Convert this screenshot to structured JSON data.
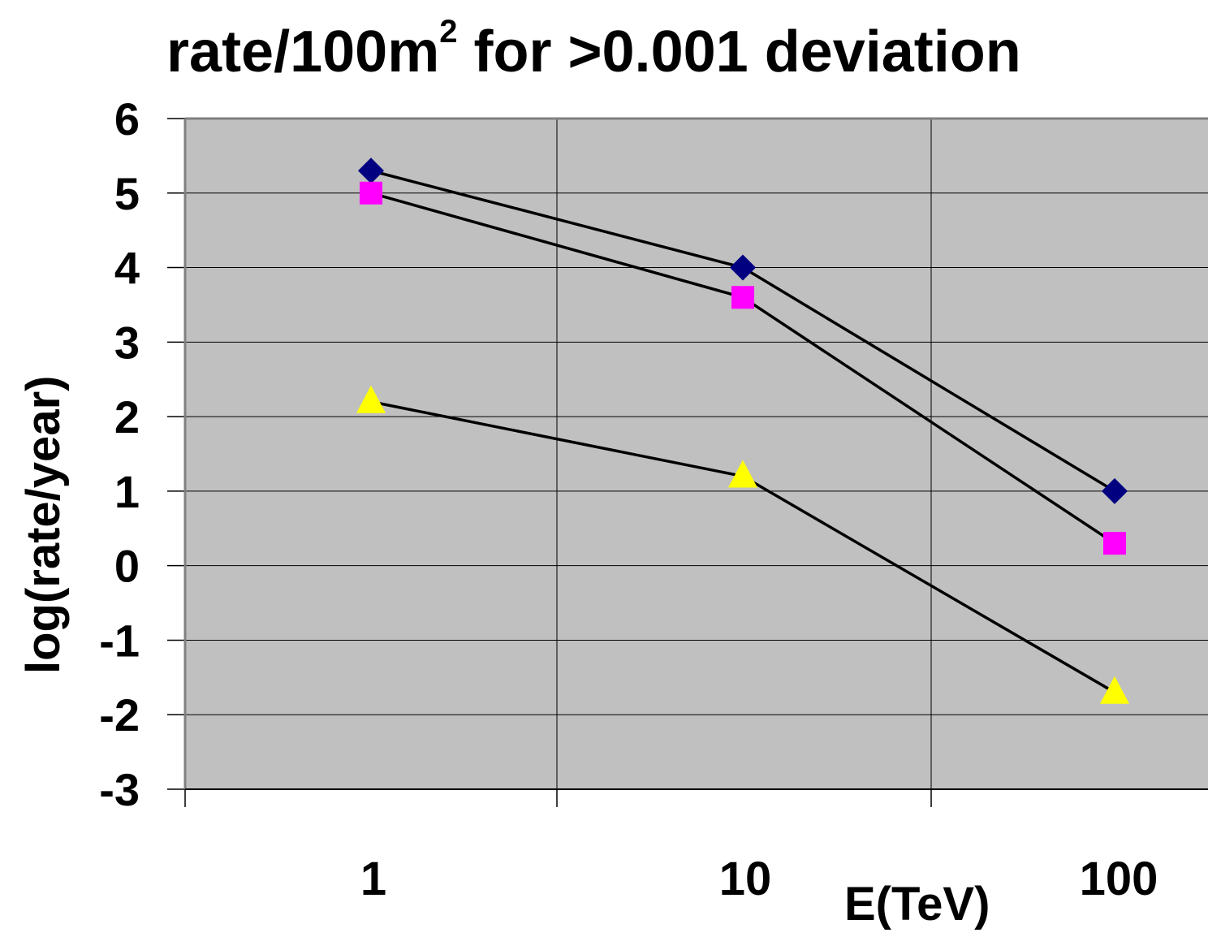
{
  "chart_data": {
    "type": "line",
    "title": {
      "main": "rate/100m",
      "sup": "2",
      "rest": " for >0.001 deviation"
    },
    "xlabel": "E(TeV)",
    "ylabel": "log(rate/year)",
    "categories": [
      "1",
      "10",
      "100"
    ],
    "yticks": [
      "6",
      "5",
      "4",
      "3",
      "2",
      "1",
      "0",
      "-1",
      "-2",
      "-3"
    ],
    "ylim": [
      -3,
      6
    ],
    "grid": true,
    "plot_background": "#c0c0c0",
    "series": [
      {
        "marker": "diamond",
        "color": "#000080",
        "values": [
          5.3,
          4.0,
          1.0
        ]
      },
      {
        "marker": "square",
        "color": "#ff00ff",
        "values": [
          5.0,
          3.6,
          0.3
        ]
      },
      {
        "marker": "triangle",
        "color": "#ffff00",
        "values": [
          2.2,
          1.2,
          -1.7
        ]
      }
    ]
  }
}
